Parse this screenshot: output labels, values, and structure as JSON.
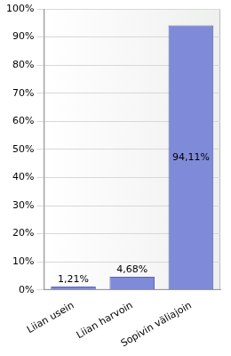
{
  "chart_data": {
    "type": "bar",
    "categories": [
      "Liian usein",
      "Liian harvoin",
      "Sopivin väliajoin"
    ],
    "values": [
      1.21,
      4.68,
      94.11
    ],
    "value_labels": [
      "1,21%",
      "4,68%",
      "94,11%"
    ],
    "data_labels": true,
    "color": "#7f8ad8",
    "ylim": [
      0,
      100
    ],
    "yticks": [
      {
        "value": 0,
        "label": "0%"
      },
      {
        "value": 10,
        "label": "10%"
      },
      {
        "value": 20,
        "label": "20%"
      },
      {
        "value": 30,
        "label": "30%"
      },
      {
        "value": 40,
        "label": "40%"
      },
      {
        "value": 50,
        "label": "50%"
      },
      {
        "value": 60,
        "label": "60%"
      },
      {
        "value": 70,
        "label": "70%"
      },
      {
        "value": 80,
        "label": "80%"
      },
      {
        "value": 90,
        "label": "90%"
      },
      {
        "value": 100,
        "label": "100%"
      }
    ],
    "grid": true
  }
}
